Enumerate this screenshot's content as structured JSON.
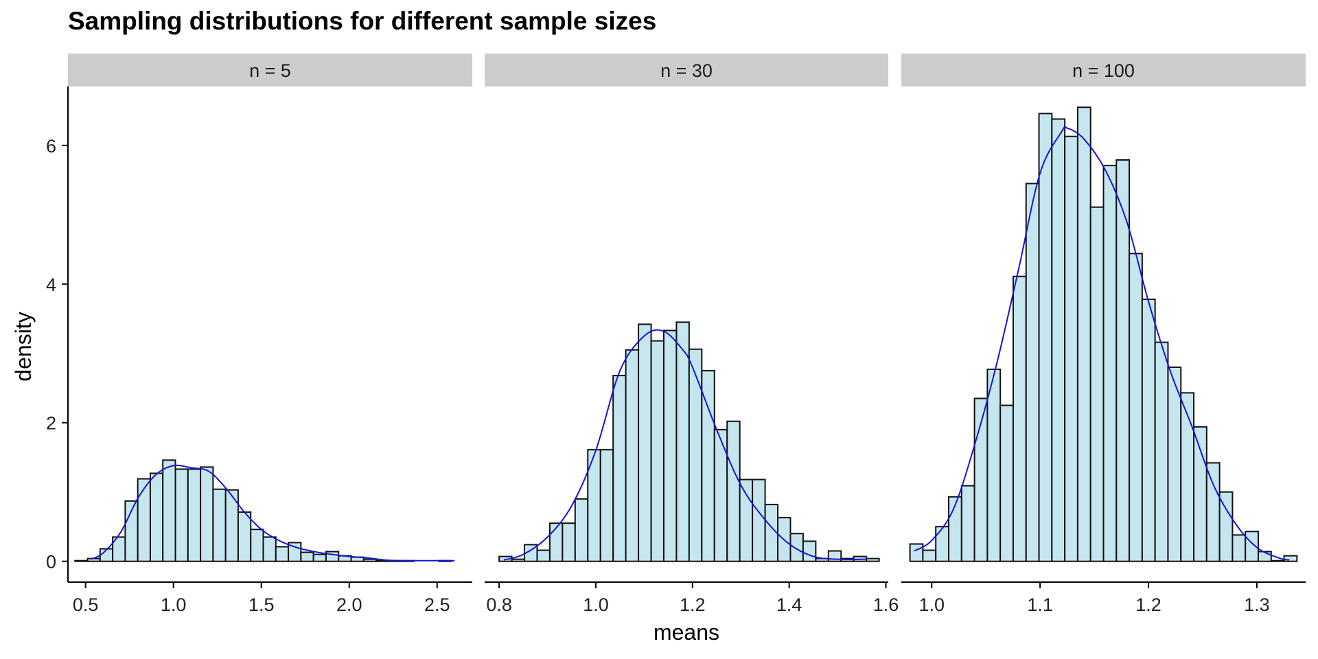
{
  "chart_data": {
    "type": "bar",
    "title": "Sampling distributions for different sample sizes",
    "xlabel": "means",
    "ylabel": "density",
    "ylim": [
      -0.3,
      6.85
    ],
    "y_ticks": [
      0,
      2,
      4,
      6
    ],
    "grid": false,
    "panels": [
      {
        "strip_label": "n = 5",
        "xlim": [
          0.4,
          2.7
        ],
        "x_ticks": [
          0.5,
          1.0,
          1.5,
          2.0,
          2.5
        ],
        "x_tick_labels": [
          "0.5",
          "1.0",
          "1.5",
          "2.0",
          "2.5"
        ],
        "bins": {
          "start": 0.44,
          "width": 0.0714,
          "density": [
            0.01,
            0.04,
            0.18,
            0.35,
            0.87,
            1.19,
            1.27,
            1.46,
            1.33,
            1.33,
            1.36,
            1.04,
            1.03,
            0.71,
            0.46,
            0.35,
            0.21,
            0.27,
            0.13,
            0.1,
            0.14,
            0.08,
            0.06,
            0.03,
            0.01,
            0.01,
            0.01,
            0.0,
            0.0,
            0.01
          ]
        },
        "density_curve": {
          "x": [
            0.53,
            0.6,
            0.7,
            0.8,
            0.9,
            1.0,
            1.1,
            1.2,
            1.3,
            1.4,
            1.5,
            1.6,
            1.7,
            1.8,
            1.9,
            2.0,
            2.1,
            2.2,
            2.3,
            2.4,
            2.5,
            2.6
          ],
          "y": [
            0.03,
            0.12,
            0.42,
            0.92,
            1.25,
            1.38,
            1.35,
            1.3,
            1.05,
            0.72,
            0.46,
            0.3,
            0.2,
            0.14,
            0.1,
            0.07,
            0.05,
            0.02,
            0.01,
            0.01,
            0.01,
            0.01
          ]
        }
      },
      {
        "strip_label": "n = 30",
        "xlim": [
          0.77,
          1.605
        ],
        "x_ticks": [
          0.8,
          1.0,
          1.2,
          1.4,
          1.6
        ],
        "x_tick_labels": [
          "0.8",
          "1.0",
          "1.2",
          "1.4",
          "1.6"
        ],
        "bins": {
          "start": 0.8,
          "width": 0.0262,
          "density": [
            0.07,
            0.03,
            0.24,
            0.16,
            0.55,
            0.55,
            0.9,
            1.61,
            1.61,
            2.68,
            3.05,
            3.42,
            3.18,
            3.33,
            3.45,
            3.06,
            2.75,
            1.9,
            2.02,
            1.18,
            1.18,
            0.82,
            0.63,
            0.4,
            0.29,
            0.04,
            0.15,
            0.04,
            0.07,
            0.04
          ]
        },
        "density_curve": {
          "x": [
            0.81,
            0.85,
            0.9,
            0.95,
            1.0,
            1.05,
            1.1,
            1.14,
            1.18,
            1.2,
            1.25,
            1.3,
            1.35,
            1.4,
            1.45,
            1.5,
            1.56
          ],
          "y": [
            0.02,
            0.1,
            0.35,
            0.8,
            1.6,
            2.75,
            3.25,
            3.32,
            3.05,
            2.8,
            1.9,
            1.1,
            0.6,
            0.25,
            0.07,
            0.03,
            0.03
          ]
        }
      },
      {
        "strip_label": "n = 100",
        "xlim": [
          0.972,
          1.345
        ],
        "x_ticks": [
          1.0,
          1.1,
          1.2,
          1.3
        ],
        "x_tick_labels": [
          "1.0",
          "1.1",
          "1.2",
          "1.3"
        ],
        "bins": {
          "start": 0.98,
          "width": 0.0119,
          "density": [
            0.25,
            0.16,
            0.5,
            0.93,
            1.09,
            2.35,
            2.77,
            2.25,
            4.11,
            5.45,
            6.46,
            6.38,
            6.13,
            6.55,
            5.11,
            5.71,
            5.79,
            4.44,
            3.78,
            3.16,
            2.8,
            2.43,
            1.94,
            1.42,
            1.0,
            0.38,
            0.43,
            0.14,
            0.01,
            0.08
          ]
        },
        "density_curve": {
          "x": [
            0.984,
            1.0,
            1.02,
            1.04,
            1.06,
            1.08,
            1.1,
            1.12,
            1.125,
            1.14,
            1.16,
            1.18,
            1.2,
            1.22,
            1.24,
            1.26,
            1.28,
            1.3,
            1.32,
            1.33
          ],
          "y": [
            0.15,
            0.3,
            0.75,
            1.7,
            2.85,
            4.2,
            5.6,
            6.2,
            6.25,
            6.1,
            5.65,
            4.9,
            3.75,
            2.75,
            1.95,
            1.1,
            0.55,
            0.2,
            0.05,
            0.02
          ]
        }
      }
    ],
    "colors": {
      "bar_fill": "#c6e6ef",
      "bar_stroke": "#111111",
      "curve": "#1515d6",
      "strip_fill": "#cccccc"
    }
  }
}
